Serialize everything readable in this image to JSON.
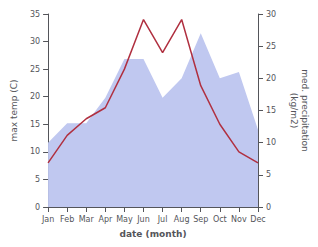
{
  "chart_data": {
    "type": "line",
    "categories": [
      "Jan",
      "Feb",
      "Mar",
      "Apr",
      "May",
      "Jun",
      "Jul",
      "Aug",
      "Sep",
      "Oct",
      "Nov",
      "Dec"
    ],
    "series": [
      {
        "type": "line",
        "color": "#b03040",
        "values": [
          8,
          13,
          16,
          18,
          25,
          34,
          28,
          34,
          22,
          15,
          10,
          8
        ]
      },
      {
        "type": "area",
        "color": "#c0c8f0",
        "axis": "y2",
        "values": [
          10,
          13,
          13,
          17,
          23,
          23,
          17,
          20,
          27,
          20,
          21,
          12
        ]
      }
    ],
    "xlabel": "date (month)",
    "ylabel": "max temp (C)",
    "y2label": "med. precipitation\n(kg/m2)",
    "ylim": [
      0,
      35
    ],
    "yticks": [
      0,
      5,
      10,
      15,
      20,
      25,
      30,
      35
    ],
    "y2lim": [
      0,
      30
    ],
    "y2ticks": [
      0,
      5,
      10,
      15,
      20,
      25,
      30
    ],
    "grid": false
  }
}
